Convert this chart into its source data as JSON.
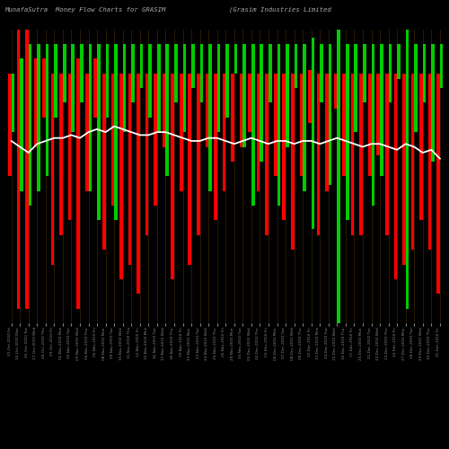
{
  "title_left": "MunafaSutra  Money Flow Charts for GRASIM",
  "title_right": "(Grasim Industries Limited",
  "background_color": "#000000",
  "line_color": "#ffffff",
  "red_color": "#ff0000",
  "green_color": "#00cc00",
  "grid_color": "#4a3000",
  "dates": [
    "22-Oct-2010 Fri",
    "25-Oct-2010 Mon",
    "26-Oct-2010 Tue",
    "27-Oct-2010 Wed",
    "28-Oct-2010 Thu",
    "29-Oct-2010 Fri",
    "01-Nov-2010 Mon",
    "02-Nov-2010 Tue",
    "03-Nov-2010 Wed",
    "04-Nov-2010 Thu",
    "05-Nov-2010 Fri",
    "08-Nov-2010 Mon",
    "09-Nov-2010 Tue",
    "10-Nov-2010 Wed",
    "11-Nov-2010 Thu",
    "12-Nov-2010 Fri",
    "15-Nov-2010 Mon",
    "16-Nov-2010 Tue",
    "17-Nov-2010 Wed",
    "18-Nov-2010 Thu",
    "19-Nov-2010 Fri",
    "22-Nov-2010 Mon",
    "23-Nov-2010 Tue",
    "24-Nov-2010 Wed",
    "25-Nov-2010 Thu",
    "26-Nov-2010 Fri",
    "29-Nov-2010 Mon",
    "30-Nov-2010 Tue",
    "01-Dec-2010 Wed",
    "02-Dec-2010 Thu",
    "03-Dec-2010 Fri",
    "06-Dec-2010 Mon",
    "07-Dec-2010 Tue",
    "08-Dec-2010 Wed",
    "09-Dec-2010 Thu",
    "10-Dec-2010 Fri",
    "13-Dec-2010 Mon",
    "14-Dec-2010 Tue",
    "15-Dec-2010 Wed",
    "16-Dec-2010 Thu",
    "17-Dec-2010 Fri",
    "20-Dec-2010 Mon",
    "21-Dec-2010 Tue",
    "22-Dec-2010 Wed",
    "23-Dec-2010 Thu",
    "24-Dec-2010 Fri",
    "27-Dec-2010 Mon",
    "28-Dec-2010 Tue",
    "29-Dec-2010 Wed",
    "30-Dec-2010 Thu",
    "31-Dec-2010 Fri"
  ],
  "red_vals": [
    35,
    95,
    100,
    30,
    20,
    65,
    55,
    50,
    85,
    40,
    20,
    60,
    45,
    70,
    65,
    75,
    55,
    45,
    25,
    70,
    40,
    65,
    55,
    25,
    50,
    40,
    30,
    25,
    20,
    40,
    55,
    35,
    50,
    60,
    35,
    18,
    55,
    40,
    12,
    35,
    55,
    55,
    35,
    28,
    55,
    70,
    65,
    60,
    50,
    60,
    75
  ],
  "green_vals": [
    20,
    45,
    55,
    50,
    45,
    25,
    20,
    30,
    20,
    50,
    60,
    25,
    60,
    30,
    20,
    15,
    25,
    30,
    45,
    20,
    30,
    15,
    20,
    50,
    30,
    25,
    10,
    35,
    55,
    40,
    20,
    55,
    35,
    15,
    50,
    65,
    20,
    48,
    100,
    60,
    30,
    20,
    55,
    45,
    20,
    12,
    95,
    30,
    20,
    40,
    15
  ],
  "red_bottom": [
    50,
    5,
    5,
    60,
    70,
    20,
    30,
    35,
    5,
    45,
    70,
    25,
    40,
    15,
    20,
    10,
    30,
    40,
    60,
    15,
    45,
    20,
    30,
    60,
    35,
    45,
    55,
    60,
    65,
    45,
    30,
    50,
    35,
    25,
    50,
    68,
    30,
    45,
    73,
    50,
    30,
    30,
    50,
    57,
    30,
    15,
    20,
    25,
    35,
    25,
    10
  ],
  "green_bottom": [
    65,
    45,
    40,
    45,
    50,
    70,
    75,
    65,
    75,
    45,
    35,
    70,
    35,
    65,
    75,
    80,
    70,
    65,
    50,
    75,
    65,
    80,
    75,
    45,
    65,
    70,
    85,
    60,
    40,
    55,
    75,
    40,
    60,
    80,
    45,
    32,
    75,
    47,
    0,
    35,
    65,
    75,
    40,
    50,
    75,
    83,
    5,
    65,
    75,
    55,
    80
  ],
  "line_values": [
    62,
    60,
    58,
    61,
    62,
    63,
    63,
    64,
    63,
    65,
    66,
    65,
    67,
    66,
    65,
    64,
    64,
    65,
    65,
    64,
    63,
    62,
    62,
    63,
    63,
    62,
    61,
    62,
    63,
    62,
    61,
    62,
    62,
    61,
    62,
    62,
    61,
    62,
    63,
    62,
    61,
    60,
    61,
    61,
    60,
    59,
    61,
    60,
    58,
    59,
    56
  ],
  "ylim": [
    0,
    100
  ],
  "figsize": [
    5.0,
    5.0
  ],
  "dpi": 100
}
